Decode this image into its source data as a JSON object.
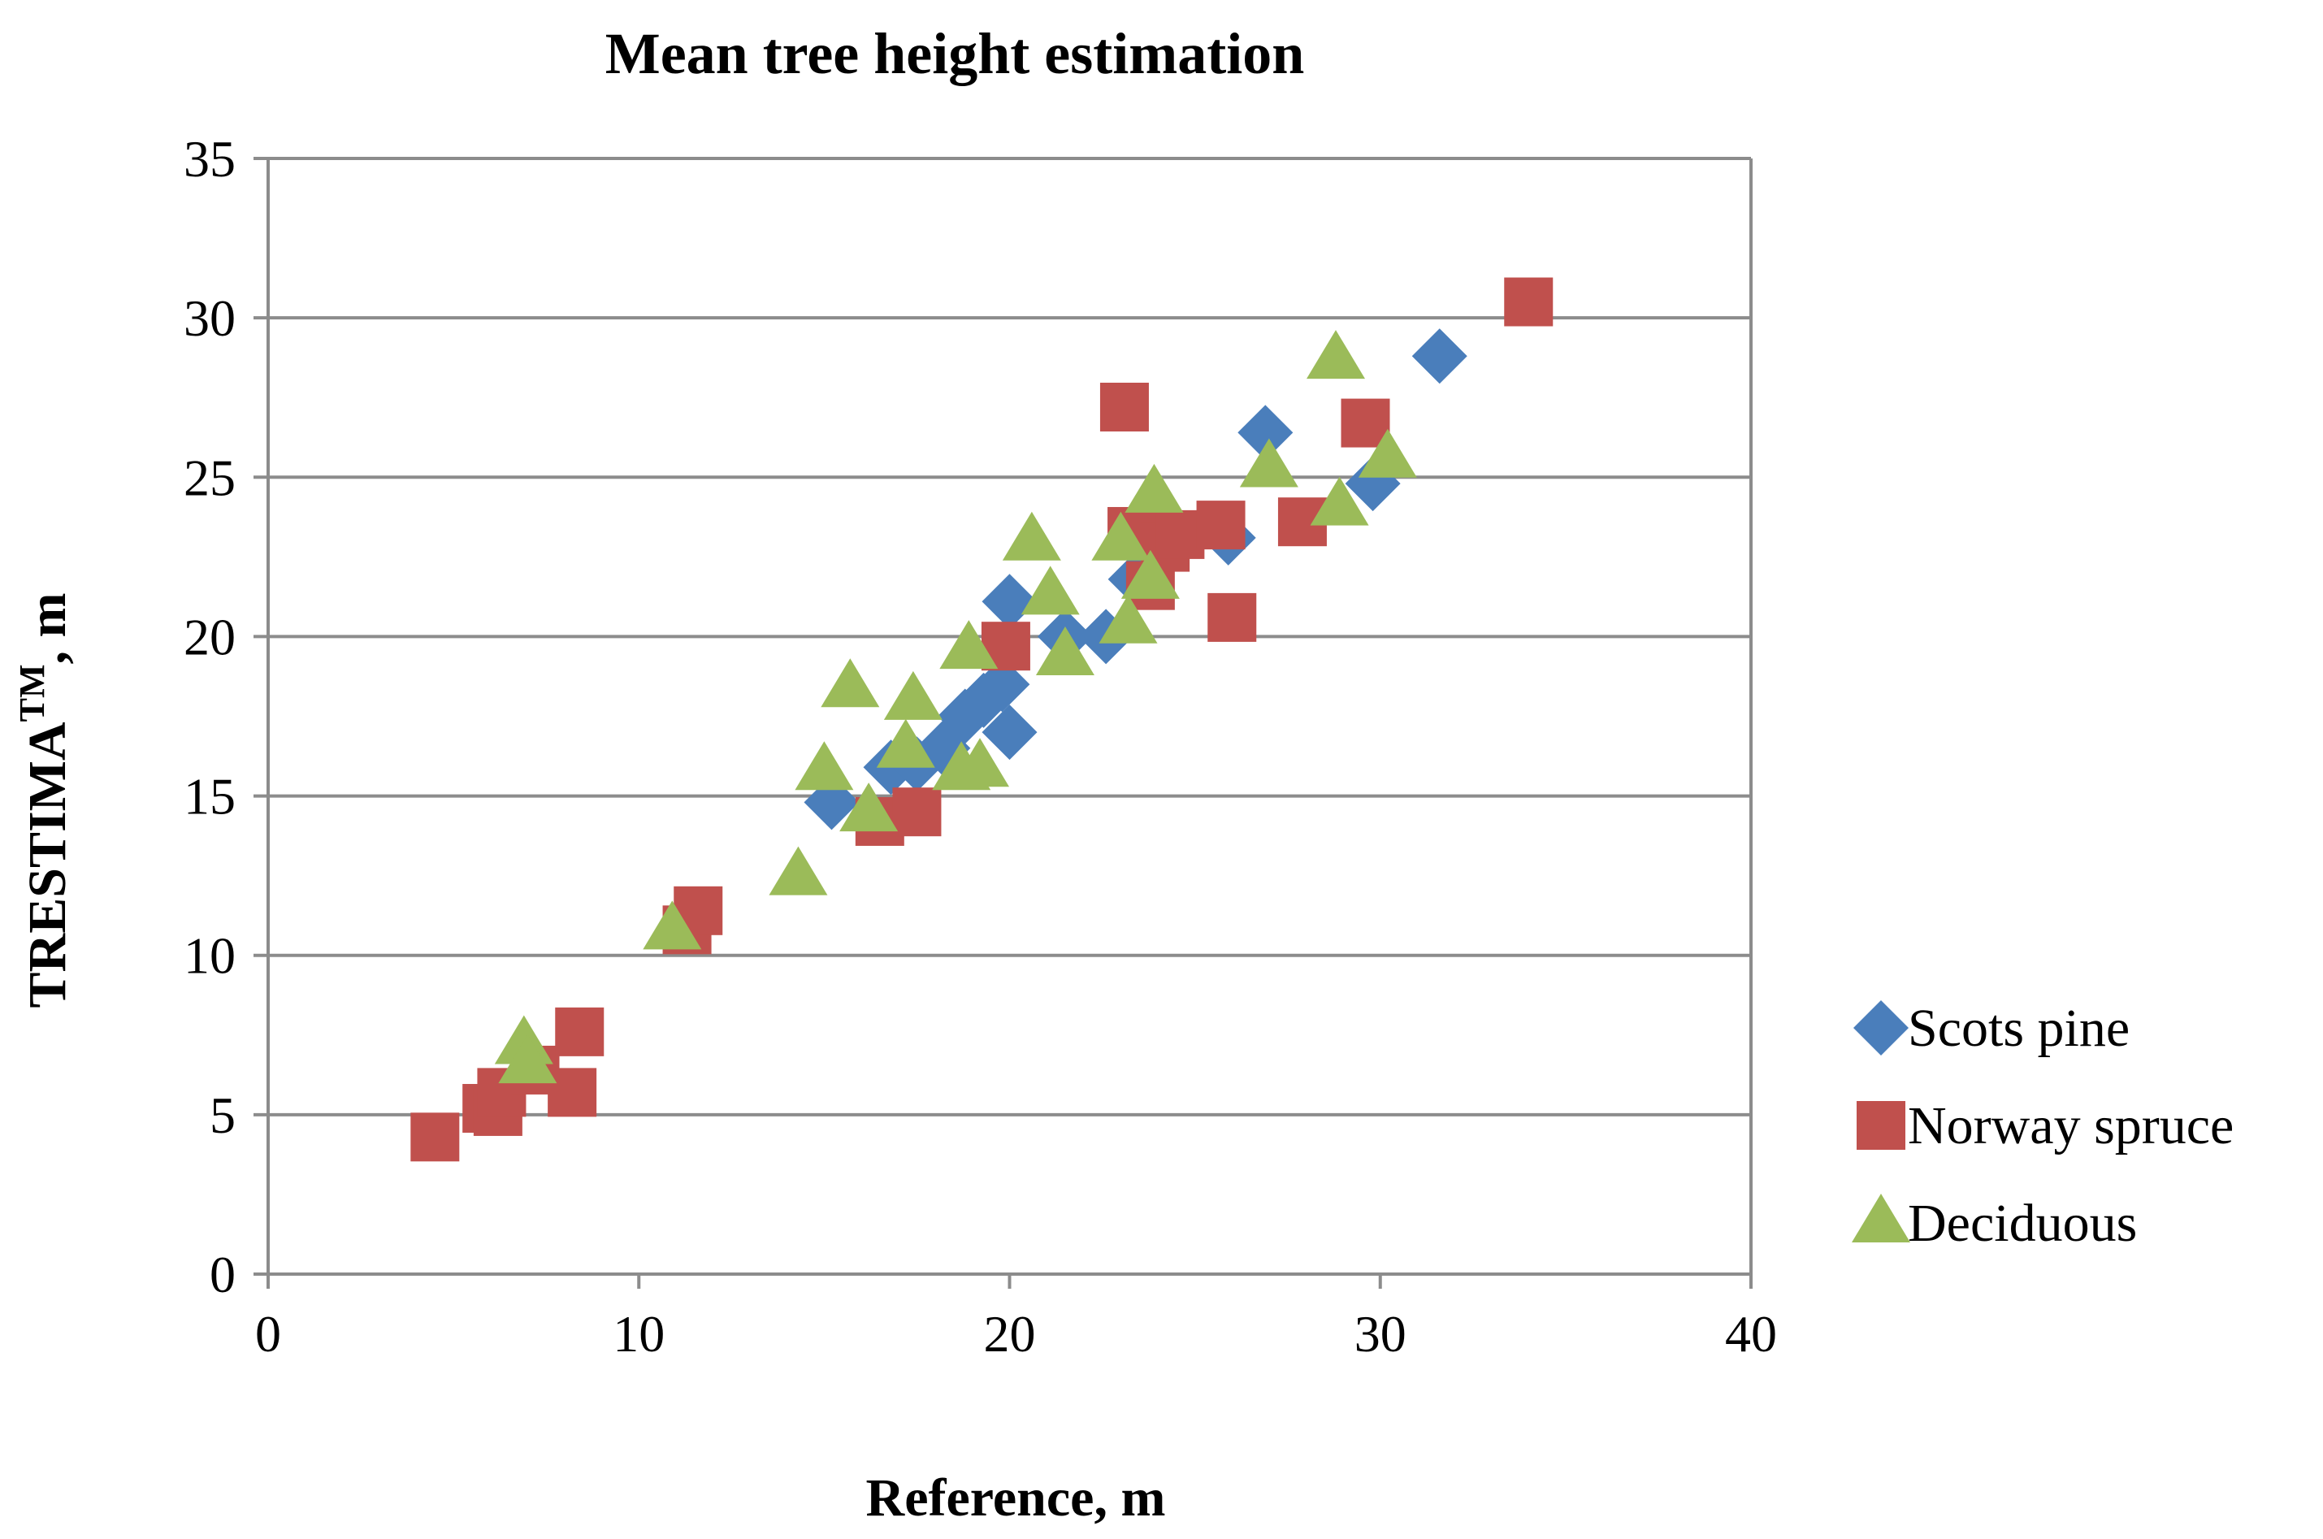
{
  "chart_data": {
    "type": "scatter",
    "title": "Mean tree height estimation",
    "xlabel": "Reference, m",
    "ylabel_main": "TRESTIMA",
    "ylabel_sup": "TM",
    "ylabel_tail": ", m",
    "xlim": [
      0,
      40
    ],
    "ylim": [
      0,
      35
    ],
    "xticks": [
      0,
      10,
      20,
      30,
      40
    ],
    "yticks": [
      0,
      5,
      10,
      15,
      20,
      25,
      30,
      35
    ],
    "grid": "horizontal",
    "legend_position": "right",
    "series": [
      {
        "name": "Scots pine",
        "marker": "diamond",
        "color": "#4a7ebb",
        "points": [
          [
            15.2,
            14.8
          ],
          [
            16.8,
            15.9
          ],
          [
            17.5,
            16.0
          ],
          [
            18.2,
            16.5
          ],
          [
            18.8,
            17.5
          ],
          [
            19.3,
            18.0
          ],
          [
            19.8,
            18.5
          ],
          [
            20.0,
            17.0
          ],
          [
            20.0,
            21.1
          ],
          [
            21.5,
            20.0
          ],
          [
            22.6,
            20.0
          ],
          [
            23.4,
            21.8
          ],
          [
            25.9,
            23.1
          ],
          [
            26.9,
            26.4
          ],
          [
            29.8,
            24.8
          ],
          [
            31.6,
            28.8
          ]
        ]
      },
      {
        "name": "Norway spruce",
        "marker": "square",
        "color": "#c0504d",
        "points": [
          [
            4.5,
            4.3
          ],
          [
            5.9,
            5.2
          ],
          [
            6.2,
            5.1
          ],
          [
            6.3,
            5.7
          ],
          [
            7.2,
            6.4
          ],
          [
            8.2,
            5.7
          ],
          [
            8.4,
            7.6
          ],
          [
            11.3,
            10.8
          ],
          [
            11.6,
            11.4
          ],
          [
            16.5,
            14.2
          ],
          [
            17.5,
            14.5
          ],
          [
            19.9,
            19.7
          ],
          [
            23.1,
            27.2
          ],
          [
            23.3,
            23.3
          ],
          [
            23.8,
            21.6
          ],
          [
            24.2,
            22.8
          ],
          [
            24.6,
            23.2
          ],
          [
            25.7,
            23.5
          ],
          [
            26.0,
            20.6
          ],
          [
            27.9,
            23.6
          ],
          [
            29.6,
            26.7
          ],
          [
            34.0,
            30.5
          ]
        ]
      },
      {
        "name": "Deciduous",
        "marker": "triangle",
        "color": "#9bbb59",
        "points": [
          [
            6.9,
            7.2
          ],
          [
            7.0,
            6.6
          ],
          [
            10.9,
            10.8
          ],
          [
            14.3,
            12.5
          ],
          [
            15.0,
            15.8
          ],
          [
            15.7,
            18.4
          ],
          [
            16.2,
            14.5
          ],
          [
            17.2,
            16.5
          ],
          [
            17.4,
            18.0
          ],
          [
            18.7,
            15.8
          ],
          [
            18.9,
            19.6
          ],
          [
            19.2,
            15.9
          ],
          [
            20.6,
            23.0
          ],
          [
            21.1,
            21.3
          ],
          [
            21.5,
            19.4
          ],
          [
            23.0,
            23.0
          ],
          [
            23.2,
            20.4
          ],
          [
            23.8,
            21.8
          ],
          [
            23.9,
            24.5
          ],
          [
            27.0,
            25.3
          ],
          [
            28.8,
            28.7
          ],
          [
            28.9,
            24.1
          ],
          [
            30.2,
            25.6
          ]
        ]
      }
    ]
  }
}
